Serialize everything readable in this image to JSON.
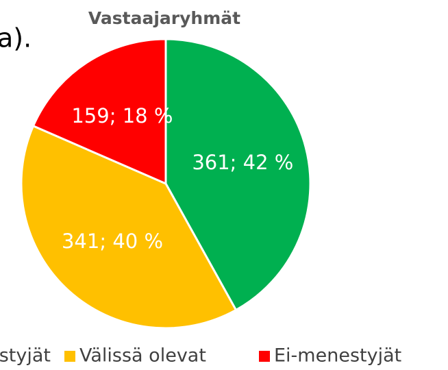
{
  "chart_data": {
    "type": "pie",
    "title": "Vastaajaryhmät",
    "annotations": [
      "a)."
    ],
    "categories": [
      "Menestyjät",
      "Välissä olevat",
      "Ei-menestyjät"
    ],
    "values": [
      361,
      341,
      159
    ],
    "value_labels": [
      "361; 42 %",
      "341; 40 %",
      "159; 18 %"
    ],
    "colors": [
      "#00b050",
      "#ffc000",
      "#ff0000"
    ],
    "legend": "bottom"
  }
}
